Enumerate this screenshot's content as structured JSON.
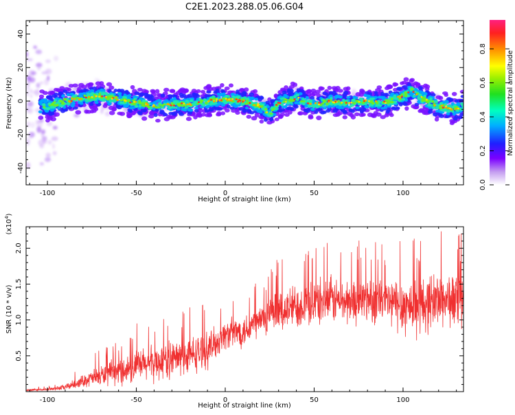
{
  "title": "C2E1.2023.288.05.06.G04",
  "chart_data": [
    {
      "type": "heatmap",
      "xlabel": "Height of straight line (km)",
      "ylabel": "Frequency (Hz)",
      "xlim": [
        -112,
        134
      ],
      "ylim": [
        -50,
        48
      ],
      "xticks": [
        -100,
        -50,
        0,
        50,
        100
      ],
      "yticks": [
        -40,
        -20,
        0,
        20,
        40
      ],
      "colorbar": {
        "label": "Normalized spectral amplitude",
        "range": [
          0.0,
          0.97
        ],
        "ticks": [
          "0.0",
          "0.2",
          "0.4",
          "0.6",
          "0.8"
        ],
        "tick_values": [
          0.0,
          0.2,
          0.4,
          0.6,
          0.8
        ]
      },
      "ridge": {
        "x": [
          -110,
          -100,
          -90,
          -80,
          -70,
          -60,
          -50,
          -40,
          -30,
          -20,
          -10,
          0,
          10,
          20,
          25,
          30,
          40,
          50,
          60,
          70,
          80,
          90,
          100,
          105,
          110,
          120,
          130,
          134
        ],
        "frequency": [
          -3,
          -3,
          0,
          2,
          3,
          1,
          -1,
          -3,
          -2,
          -2,
          0,
          1,
          0,
          -3,
          -8,
          -1,
          2,
          -2,
          0,
          -1,
          0,
          -1,
          3,
          6,
          2,
          -3,
          -5,
          -3
        ]
      }
    },
    {
      "type": "line",
      "xlabel": "Height of straight line (km)",
      "ylabel": "SNR (10 * v/v)",
      "y_multiplier": "(x10",
      "y_multiplier_exp": "4",
      "y_multiplier_close": ")",
      "xlim": [
        -112,
        134
      ],
      "ylim": [
        0,
        2.3
      ],
      "xticks": [
        -100,
        -50,
        0,
        50,
        100
      ],
      "yticks": [
        0.5,
        1.0,
        1.5,
        2.0
      ],
      "series": [
        {
          "color": "#f03030",
          "x": [
            -112,
            -100,
            -90,
            -80,
            -70,
            -60,
            -50,
            -40,
            -30,
            -20,
            -10,
            0,
            10,
            20,
            30,
            40,
            50,
            60,
            70,
            80,
            90,
            100,
            110,
            120,
            134
          ],
          "mean": [
            0.02,
            0.03,
            0.06,
            0.15,
            0.22,
            0.28,
            0.35,
            0.4,
            0.45,
            0.5,
            0.58,
            0.8,
            0.85,
            1.0,
            1.1,
            1.2,
            1.25,
            1.28,
            1.25,
            1.3,
            1.25,
            1.2,
            1.2,
            1.3,
            1.25
          ],
          "spread": [
            0.02,
            0.02,
            0.05,
            0.1,
            0.18,
            0.22,
            0.28,
            0.3,
            0.32,
            0.32,
            0.3,
            0.25,
            0.28,
            0.3,
            0.35,
            0.38,
            0.4,
            0.4,
            0.38,
            0.4,
            0.42,
            0.5,
            0.5,
            0.48,
            0.45
          ]
        }
      ]
    }
  ]
}
